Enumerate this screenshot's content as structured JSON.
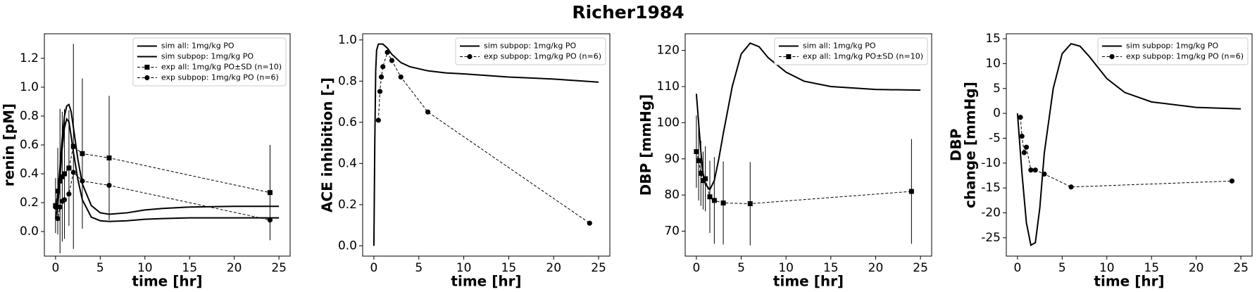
{
  "title": "Richer1984",
  "chart_data": [
    {
      "type": "line",
      "xlabel": "time [hr]",
      "ylabel": "renin [pM]",
      "legend": "upper right",
      "xlim": [
        -1.25,
        26.25
      ],
      "ylim": [
        -0.17,
        1.37
      ],
      "xticks": [
        0,
        5,
        10,
        15,
        20,
        25
      ],
      "yticks": [
        {
          "value": 0,
          "label": "0.0"
        },
        0.2,
        0.4,
        0.6,
        0.8,
        {
          "value": 1,
          "label": "1.0"
        },
        1.2
      ],
      "series": [
        {
          "name": "sim all: 1mg/kg PO",
          "color": "#000000",
          "linestyle": "solid",
          "x": [
            0,
            0.25,
            0.5,
            0.75,
            1,
            1.25,
            1.5,
            1.75,
            2,
            2.5,
            3,
            4,
            5,
            6,
            8,
            10,
            12,
            15,
            20,
            25
          ],
          "values": [
            0.17,
            0.25,
            0.45,
            0.65,
            0.8,
            0.87,
            0.88,
            0.83,
            0.72,
            0.5,
            0.33,
            0.18,
            0.13,
            0.12,
            0.13,
            0.15,
            0.16,
            0.17,
            0.175,
            0.175
          ]
        },
        {
          "name": "sim subpop: 1mg/kg PO",
          "color": "#000000",
          "linestyle": "solid",
          "x": [
            0,
            0.25,
            0.5,
            0.75,
            1,
            1.25,
            1.5,
            1.75,
            2,
            2.5,
            3,
            4,
            5,
            6,
            8,
            10,
            12,
            15,
            20,
            25
          ],
          "values": [
            0.09,
            0.18,
            0.38,
            0.58,
            0.72,
            0.78,
            0.76,
            0.66,
            0.55,
            0.36,
            0.22,
            0.1,
            0.075,
            0.07,
            0.075,
            0.085,
            0.09,
            0.095,
            0.095,
            0.095
          ]
        },
        {
          "name": "exp all: 1mg/kg PO±SD (n=10)",
          "color": "#000000",
          "linestyle": "dashed",
          "marker": "square",
          "x": [
            0,
            0.25,
            0.5,
            0.75,
            1,
            1.5,
            2,
            3,
            6,
            24
          ],
          "values": [
            0.18,
            0.28,
            0.35,
            0.38,
            0.4,
            0.44,
            0.59,
            0.54,
            0.51,
            0.27
          ],
          "errors": [
            0.19,
            0.3,
            0.5,
            0.45,
            0.45,
            0.4,
            0.71,
            0.52,
            0.43,
            0.33
          ]
        },
        {
          "name": "exp subpop: 1mg/kg PO (n=6)",
          "color": "#000000",
          "linestyle": "dashed",
          "marker": "circle",
          "x": [
            0,
            0.25,
            0.5,
            0.75,
            1,
            1.5,
            2,
            3,
            6,
            24
          ],
          "values": [
            0.17,
            0.09,
            0.17,
            0.21,
            0.22,
            0.26,
            0.41,
            0.35,
            0.32,
            0.08
          ]
        }
      ]
    },
    {
      "type": "line",
      "xlabel": "time [hr]",
      "ylabel": "ACE inhibition [-]",
      "legend": "upper right",
      "xlim": [
        -1.25,
        26.25
      ],
      "ylim": [
        -0.05,
        1.03
      ],
      "xticks": [
        0,
        5,
        10,
        15,
        20,
        25
      ],
      "yticks": [
        {
          "value": 0,
          "label": "0.0"
        },
        0.2,
        0.4,
        0.6,
        0.8,
        {
          "value": 1,
          "label": "1.0"
        }
      ],
      "series": [
        {
          "name": "sim subpop: 1mg/kg PO",
          "color": "#000000",
          "linestyle": "solid",
          "x": [
            0,
            0.1,
            0.2,
            0.3,
            0.5,
            1,
            1.5,
            2,
            3,
            4,
            6,
            8,
            10,
            15,
            20,
            25
          ],
          "values": [
            0,
            0.5,
            0.85,
            0.95,
            0.98,
            0.98,
            0.96,
            0.93,
            0.89,
            0.87,
            0.85,
            0.84,
            0.835,
            0.82,
            0.81,
            0.795
          ]
        },
        {
          "name": "exp subpop: 1mg/kg PO (n=6)",
          "color": "#000000",
          "linestyle": "dashed",
          "marker": "circle",
          "x": [
            0.5,
            0.67,
            0.83,
            1,
            1.5,
            2,
            3,
            6,
            24
          ],
          "values": [
            0.61,
            0.75,
            0.82,
            0.87,
            0.94,
            0.9,
            0.82,
            0.65,
            0.11
          ]
        }
      ]
    },
    {
      "type": "line",
      "xlabel": "time [hr]",
      "ylabel": "DBP [mmHg]",
      "legend": "upper right",
      "xlim": [
        -1.25,
        26.25
      ],
      "ylim": [
        63.1,
        124.6
      ],
      "xticks": [
        0,
        5,
        10,
        15,
        20,
        25
      ],
      "yticks": [
        70,
        80,
        90,
        100,
        110,
        120
      ],
      "series": [
        {
          "name": "sim all: 1mg/kg PO",
          "color": "#000000",
          "linestyle": "solid",
          "x": [
            0,
            0.25,
            0.5,
            0.75,
            1,
            1.5,
            2,
            2.5,
            3,
            4,
            5,
            6,
            7,
            8,
            10,
            12,
            15,
            20,
            25
          ],
          "values": [
            108,
            100,
            92,
            86,
            83,
            81.5,
            84,
            90,
            97,
            110,
            119,
            122,
            121,
            118,
            114,
            111.5,
            110,
            109.2,
            109
          ]
        },
        {
          "name": "exp all: 1mg/kg PO±SD (n=10)",
          "color": "#000000",
          "linestyle": "dashed",
          "marker": "square",
          "x": [
            0,
            0.25,
            0.5,
            0.75,
            1,
            1.5,
            2,
            3,
            6,
            24
          ],
          "values": [
            92,
            89.5,
            86,
            84,
            84.5,
            79.5,
            78.5,
            77.8,
            77.6,
            81
          ],
          "errors": [
            10,
            11,
            9,
            8,
            9,
            10,
            12,
            11.5,
            11.5,
            14.5
          ]
        }
      ]
    },
    {
      "type": "line",
      "xlabel": "time [hr]",
      "ylabel": [
        "DBP",
        "change [mmHg]"
      ],
      "legend": "upper right",
      "xlim": [
        -1.25,
        26.25
      ],
      "ylim": [
        -28.7,
        16
      ],
      "xticks": [
        0,
        5,
        10,
        15,
        20,
        25
      ],
      "yticks": [
        -25,
        -20,
        -15,
        -10,
        -5,
        0,
        5,
        10,
        15
      ],
      "series": [
        {
          "name": "sim subpop: 1mg/kg PO",
          "color": "#000000",
          "linestyle": "solid",
          "x": [
            0,
            0.5,
            1,
            1.5,
            2,
            2.5,
            3,
            4,
            5,
            6,
            7,
            8,
            10,
            12,
            15,
            20,
            25
          ],
          "values": [
            0,
            -12,
            -22,
            -26.5,
            -26,
            -19,
            -8,
            5,
            12,
            14,
            13.5,
            11.5,
            7,
            4.2,
            2.3,
            1.2,
            0.9
          ]
        },
        {
          "name": "exp subpop: 1mg/kg PO (n=6)",
          "color": "#000000",
          "linestyle": "dashed",
          "marker": "circle",
          "x": [
            0.33,
            0.5,
            0.75,
            1,
            1.5,
            2,
            3,
            6,
            24
          ],
          "values": [
            -0.8,
            -4.6,
            -7.9,
            -6.8,
            -11.4,
            -11.4,
            -12.2,
            -14.8,
            -13.6
          ]
        }
      ]
    }
  ]
}
